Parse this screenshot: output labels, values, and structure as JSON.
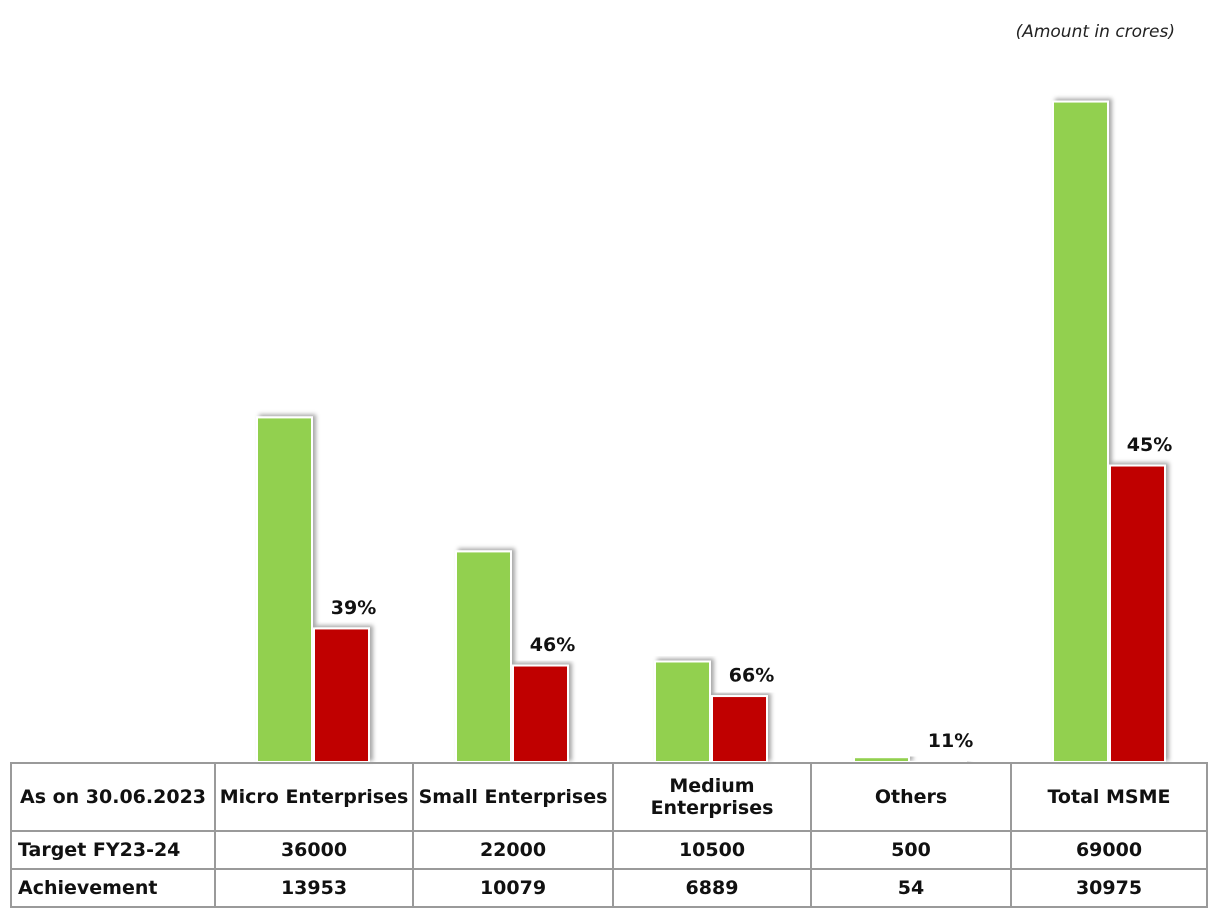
{
  "chart_data": {
    "type": "bar",
    "note": "(Amount in crores)",
    "table_header": "As on 30.06.2023",
    "categories": [
      "Micro Enterprises",
      "Small Enterprises",
      "Medium Enterprises",
      "Others",
      "Total MSME"
    ],
    "series": [
      {
        "name": "Target FY23-24",
        "color": "#92d050",
        "values": [
          36000,
          22000,
          10500,
          500,
          69000
        ]
      },
      {
        "name": "Achievement",
        "color": "#c00000",
        "values": [
          13953,
          10079,
          6889,
          54,
          30975
        ]
      }
    ],
    "annotations": [
      "39%",
      "46%",
      "66%",
      "11%",
      "45%"
    ],
    "ylim": [
      0,
      70000
    ]
  }
}
